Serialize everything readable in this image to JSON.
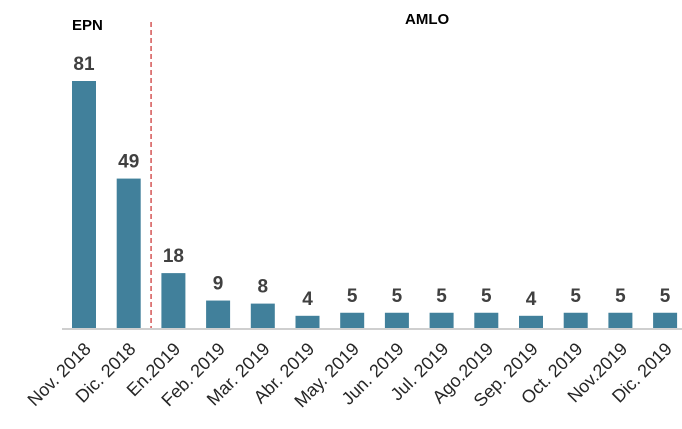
{
  "chart_data": {
    "type": "bar",
    "categories": [
      "Nov. 2018",
      "Dic. 2018",
      "En.2019",
      "Feb. 2019",
      "Mar. 2019",
      "Abr. 2019",
      "May. 2019",
      "Jun. 2019",
      "Jul. 2019",
      "Ago.2019",
      "Sep. 2019",
      "Oct. 2019",
      "Nov.2019",
      "Dic. 2019"
    ],
    "values": [
      81,
      49,
      18,
      9,
      8,
      4,
      5,
      5,
      5,
      5,
      4,
      5,
      5,
      5
    ],
    "title": "",
    "xlabel": "",
    "ylabel": "",
    "ylim": [
      0,
      81
    ],
    "grid": false,
    "legend": "none",
    "periods": [
      {
        "label": "EPN",
        "from_index": 0,
        "to_index": 1
      },
      {
        "label": "AMLO",
        "from_index": 2,
        "to_index": 13
      }
    ],
    "divider_after_index": 1
  },
  "colors": {
    "bar": "#41809b",
    "divider": "#c00000",
    "value_label": "#404040",
    "axis": "#bfbfbf"
  }
}
